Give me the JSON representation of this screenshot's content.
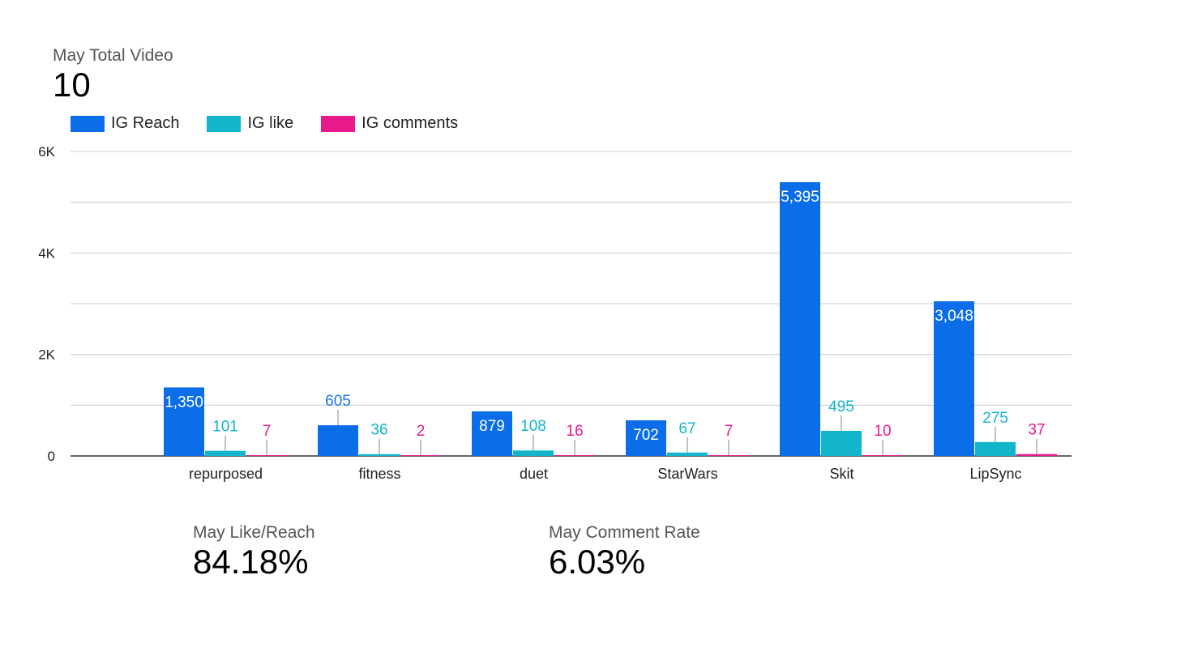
{
  "scorecards": {
    "total_video": {
      "label": "May Total Video",
      "value": "10"
    },
    "like_reach": {
      "label": "May Like/Reach",
      "value": "84.18%"
    },
    "comment_rate": {
      "label": "May Comment Rate",
      "value": "6.03%"
    }
  },
  "chart_data": {
    "type": "bar",
    "title": "",
    "xlabel": "",
    "ylabel": "",
    "categories": [
      "repurposed",
      "fitness",
      "duet",
      "StarWars",
      "Skit",
      "LipSync"
    ],
    "series": [
      {
        "name": "IG Reach",
        "color": "#0b6ee8",
        "values": [
          1350,
          605,
          879,
          702,
          5395,
          3048
        ],
        "labels": [
          "1,350",
          "605",
          "879",
          "702",
          "5,395",
          "3,048"
        ]
      },
      {
        "name": "IG like",
        "color": "#12b5cb",
        "values": [
          101,
          36,
          108,
          67,
          495,
          275
        ],
        "labels": [
          "101",
          "36",
          "108",
          "67",
          "495",
          "275"
        ]
      },
      {
        "name": "IG comments",
        "color": "#e8198b",
        "values": [
          7,
          2,
          16,
          7,
          10,
          37
        ],
        "labels": [
          "7",
          "2",
          "16",
          "7",
          "10",
          "37"
        ]
      }
    ],
    "ylim": [
      0,
      6000
    ],
    "yticks": [
      0,
      2000,
      4000,
      6000
    ],
    "ytick_labels": [
      "0",
      "2K",
      "4K",
      "6K"
    ],
    "grid": true,
    "legend_position": "top-left"
  }
}
